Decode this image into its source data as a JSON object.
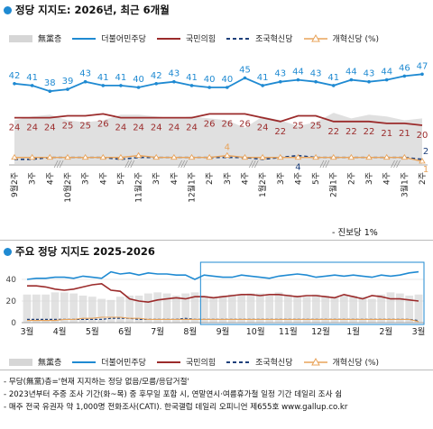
{
  "top": {
    "title": "정당 지지도: 2026년, 최근 6개월",
    "note": "- 진보당 1%"
  },
  "bottom": {
    "title": "주요 정당 지지도 2025-2026"
  },
  "legend": {
    "items": [
      {
        "label": "無黨층",
        "key": "unaffiliated",
        "color": "#d6d6d6",
        "style": "area"
      },
      {
        "label": "더불어민주당",
        "key": "dpk",
        "color": "#1f8ad2",
        "style": "line"
      },
      {
        "label": "국민의힘",
        "key": "ppp",
        "color": "#9b2b2b",
        "style": "line"
      },
      {
        "label": "조국혁신당",
        "key": "rebuild",
        "color": "#1d3f7a",
        "style": "dash"
      },
      {
        "label": "개혁신당 (%)",
        "key": "reform",
        "color": "#e8a35a",
        "style": "triangle"
      }
    ]
  },
  "footnotes": [
    "- 무당(無黨)층='현재 지지하는 정당 없음/모름/응답거절'",
    "- 2023년부터 주중 조사 기간(화~목) 중 후무일 포함 시, 연말연시·여름휴가철 일정 기간 데일리 조사 쉼",
    "- 매주 전국 유권자 약 1,000명 전화조사(CATI). 한국갤럽 데일리 오피니언 제655호 www.gallup.co.kr"
  ],
  "chart_data": [
    {
      "type": "line",
      "title": "정당 지지도: 2026년, 최근 6개월",
      "x": [
        "9월2주",
        "3주",
        "4주",
        "10월2주",
        "3주",
        "4주",
        "5주",
        "11월2주",
        "3주",
        "4주",
        "12월1주",
        "2주",
        "3주",
        "4주",
        "1월2주",
        "3주",
        "4주",
        "5주",
        "2월1주",
        "2주",
        "3주",
        "4주",
        "3월1주",
        "2주"
      ],
      "series": [
        {
          "name": "더불어민주당",
          "values": [
            42,
            41,
            38,
            39,
            43,
            41,
            41,
            40,
            42,
            43,
            41,
            40,
            40,
            45,
            41,
            43,
            44,
            43,
            41,
            44,
            43,
            44,
            46,
            47
          ]
        },
        {
          "name": "국민의힘",
          "values": [
            24,
            24,
            24,
            25,
            25,
            26,
            24,
            24,
            24,
            24,
            24,
            26,
            26,
            26,
            24,
            22,
            25,
            25,
            22,
            22,
            22,
            21,
            21,
            20
          ]
        },
        {
          "name": "조국혁신당",
          "values": [
            2,
            2,
            3,
            3,
            3,
            3,
            2,
            3,
            3,
            3,
            3,
            3,
            3,
            3,
            2,
            3,
            4,
            3,
            3,
            3,
            3,
            3,
            3,
            2
          ]
        },
        {
          "name": "개혁신당",
          "values": [
            3,
            3,
            3,
            3,
            3,
            3,
            3,
            4,
            3,
            3,
            3,
            3,
            4,
            3,
            3,
            3,
            3,
            3,
            3,
            3,
            3,
            3,
            3,
            1
          ]
        },
        {
          "name": "無黨층",
          "values": [
            25,
            27,
            28,
            25,
            24,
            25,
            28,
            28,
            27,
            26,
            27,
            26,
            25,
            21,
            27,
            25,
            22,
            24,
            29,
            26,
            28,
            27,
            25,
            26
          ]
        }
      ],
      "data_labels": {
        "더불어민주당": [
          42,
          41,
          38,
          39,
          43,
          41,
          41,
          40,
          42,
          43,
          41,
          40,
          40,
          45,
          41,
          43,
          44,
          43,
          41,
          44,
          43,
          44,
          46,
          47
        ],
        "국민의힘": [
          24,
          24,
          24,
          25,
          25,
          26,
          24,
          24,
          24,
          24,
          24,
          26,
          26,
          26,
          24,
          22,
          25,
          25,
          22,
          22,
          22,
          21,
          21,
          20
        ],
        "extra": [
          "4",
          "4",
          "2",
          "1"
        ]
      },
      "ylim": [
        0,
        60
      ],
      "x_tick_labels": [
        "9월2주",
        "3주",
        "4주",
        "10월2주",
        "3주",
        "4주",
        "5주",
        "11월2주",
        "3주",
        "4주",
        "12월1주",
        "2주",
        "3주",
        "4주",
        "1월2주",
        "3주",
        "4주",
        "5주",
        "2월1주",
        "2주",
        "3주",
        "4주",
        "3월1주",
        "2주"
      ]
    },
    {
      "type": "line",
      "title": "주요 정당 지지도 2025-2026",
      "x_tick_labels": [
        "3월",
        "4월",
        "5월",
        "6월",
        "7월",
        "8월",
        "9월",
        "10월",
        "11월",
        "12월",
        "1월",
        "2월",
        "3월"
      ],
      "y_tick_labels": [
        "0",
        "20",
        "40"
      ],
      "ylim": [
        0,
        50
      ],
      "series": [
        {
          "name": "더불어민주당",
          "values": [
            40,
            41,
            41,
            42,
            42,
            41,
            43,
            42,
            41,
            47,
            45,
            46,
            44,
            46,
            45,
            45,
            44,
            44,
            40,
            44,
            43,
            42,
            42,
            44,
            43,
            42,
            41,
            43,
            44,
            45,
            44,
            42,
            43,
            44,
            43,
            44,
            43,
            42,
            44,
            43,
            44,
            46,
            47
          ]
        },
        {
          "name": "국민의힘",
          "values": [
            34,
            34,
            33,
            31,
            30,
            31,
            33,
            35,
            36,
            30,
            29,
            22,
            20,
            19,
            21,
            22,
            23,
            22,
            24,
            24,
            23,
            24,
            25,
            26,
            26,
            25,
            26,
            26,
            25,
            24,
            25,
            25,
            24,
            23,
            26,
            24,
            22,
            25,
            24,
            22,
            22,
            21,
            20
          ]
        },
        {
          "name": "無黨층",
          "values": [
            26,
            26,
            26,
            28,
            28,
            27,
            25,
            24,
            22,
            21,
            24,
            25,
            25,
            27,
            28,
            27,
            25,
            27,
            28,
            25,
            24,
            25,
            26,
            26,
            27,
            27,
            25,
            28,
            26,
            25,
            24,
            26,
            25,
            24,
            25,
            25,
            24,
            22,
            26,
            28,
            27,
            25,
            26
          ]
        },
        {
          "name": "조국혁신당",
          "values": [
            3,
            3,
            3,
            3,
            3,
            3,
            3,
            3,
            3,
            4,
            4,
            4,
            3,
            3,
            3,
            3,
            3,
            4,
            3,
            3,
            3,
            3,
            3,
            3,
            3,
            3,
            3,
            3,
            3,
            3,
            3,
            3,
            3,
            3,
            3,
            3,
            3,
            3,
            3,
            3,
            3,
            3,
            2
          ]
        },
        {
          "name": "개혁신당",
          "values": [
            2,
            2,
            2,
            2,
            3,
            3,
            4,
            4,
            5,
            5,
            5,
            4,
            4,
            3,
            3,
            3,
            3,
            3,
            3,
            3,
            3,
            3,
            3,
            3,
            3,
            3,
            3,
            3,
            3,
            3,
            3,
            3,
            3,
            3,
            3,
            3,
            3,
            3,
            3,
            3,
            3,
            3,
            1
          ]
        }
      ]
    }
  ]
}
